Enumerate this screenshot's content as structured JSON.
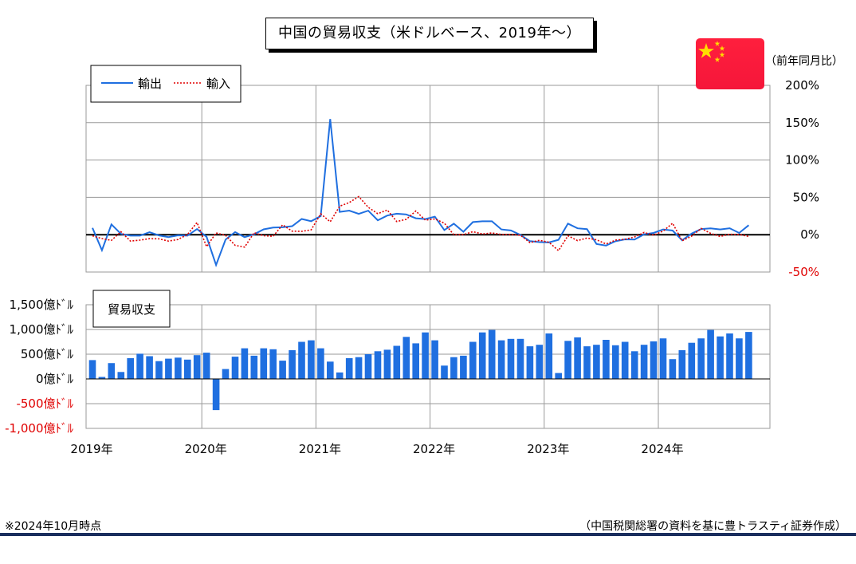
{
  "header": {
    "title": "中国の貿易収支（米ドルベース、2019年～）",
    "yoy_unit": "（前年同月比）"
  },
  "footer": {
    "note": "※2024年10月時点",
    "source": "（中国税関総署の資料を基に豊トラスティ証券作成）"
  },
  "colors": {
    "export_line": "#1f6fe0",
    "import_line": "#e00000",
    "bar": "#1f6fe0",
    "negative_tick": "#e00000",
    "grid": "#9a9a9a",
    "flag_red": "#ff1f3d",
    "flag_star": "#ffde00"
  },
  "chart_data": [
    {
      "type": "line",
      "legend": [
        "輸出",
        "輸入"
      ],
      "legend_placement": "top-left",
      "y_ticks": [
        "200%",
        "150%",
        "100%",
        "50%",
        "0%",
        "-50%"
      ],
      "ylim": [
        -50,
        200
      ],
      "x_ticks": [
        "2019年",
        "2020年",
        "2021年",
        "2022年",
        "2023年",
        "2024年"
      ],
      "x_start": "2019-01",
      "grid": true,
      "series": [
        {
          "name": "輸出",
          "values": [
            9.1,
            -20.8,
            13.8,
            1.1,
            -1.3,
            -1.3,
            3.3,
            -1.0,
            -3.2,
            -0.9,
            -1.3,
            7.6,
            -2.9,
            -40.6,
            -6.6,
            3.5,
            -3.3,
            0.5,
            7.2,
            9.5,
            9.9,
            11.4,
            21.1,
            18.1,
            24.9,
            154.9,
            30.6,
            32.3,
            27.9,
            32.2,
            19.3,
            25.6,
            28.1,
            27.1,
            22.0,
            20.9,
            24.1,
            6.2,
            14.7,
            3.9,
            16.9,
            17.9,
            18.0,
            7.1,
            5.7,
            -0.3,
            -8.7,
            -9.9,
            -10.4,
            -6.8,
            14.8,
            8.5,
            7.5,
            -12.4,
            -14.5,
            -8.8,
            -6.2,
            -6.4,
            0.5,
            2.3,
            7.1,
            5.6,
            -7.5,
            1.5,
            7.6,
            8.6,
            7.0,
            8.7,
            2.4,
            12.7
          ],
          "style": "solid"
        },
        {
          "name": "輸入",
          "values": [
            -1.5,
            -5.2,
            -7.6,
            4.0,
            -8.5,
            -7.3,
            -5.3,
            -5.6,
            -8.5,
            -6.4,
            0.3,
            16.3,
            -16.0,
            2.4,
            -0.9,
            -14.2,
            -16.7,
            2.7,
            -1.4,
            -2.1,
            13.2,
            4.7,
            4.5,
            6.5,
            28.0,
            17.3,
            38.1,
            43.1,
            51.1,
            36.7,
            28.1,
            33.1,
            17.6,
            20.6,
            31.7,
            19.5,
            21.2,
            15.5,
            -0.1,
            0.0,
            4.1,
            1.0,
            2.3,
            0.3,
            0.3,
            -0.7,
            -10.6,
            -7.5,
            -10.2,
            -21.4,
            -1.4,
            -7.9,
            -4.5,
            -6.8,
            -12.4,
            -7.3,
            -6.2,
            -3.0,
            3.0,
            -0.6,
            4.8,
            15.4,
            -8.1,
            -1.9,
            8.4,
            1.8,
            -2.3,
            0.5,
            0.3,
            -2.3
          ],
          "style": "dotted"
        }
      ]
    },
    {
      "type": "bar",
      "title": "貿易収支",
      "y_ticks": [
        "1,500億ﾄﾞﾙ",
        "1,000億ﾄﾞﾙ",
        "500億ﾄﾞﾙ",
        "0億ﾄﾞﾙ",
        "-500億ﾄﾞﾙ",
        "-1,000億ﾄﾞﾙ"
      ],
      "ylim": [
        -1000,
        1500
      ],
      "x_ticks": [
        "2019年",
        "2020年",
        "2021年",
        "2022年",
        "2023年",
        "2024年"
      ],
      "x_start": "2019-01",
      "values": [
        380,
        40,
        320,
        140,
        420,
        510,
        460,
        360,
        410,
        430,
        390,
        480,
        530,
        -630,
        200,
        450,
        620,
        470,
        620,
        600,
        370,
        580,
        750,
        780,
        620,
        350,
        130,
        420,
        440,
        500,
        560,
        590,
        670,
        850,
        720,
        940,
        780,
        270,
        440,
        470,
        750,
        940,
        990,
        780,
        810,
        810,
        660,
        690,
        920,
        120,
        770,
        840,
        660,
        690,
        790,
        680,
        750,
        560,
        690,
        760,
        820,
        400,
        580,
        730,
        820,
        990,
        860,
        920,
        820,
        950
      ]
    }
  ]
}
